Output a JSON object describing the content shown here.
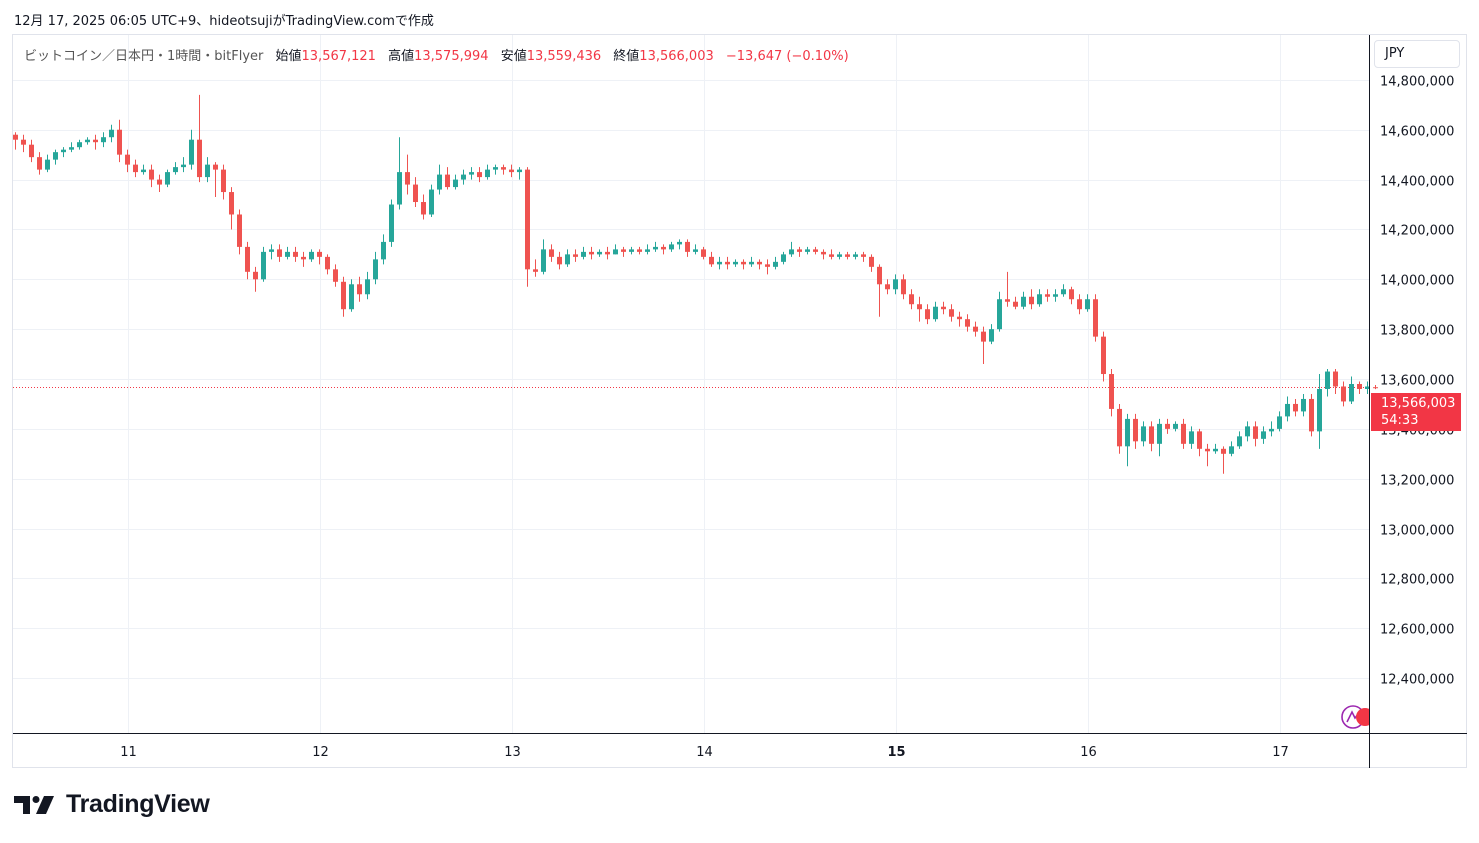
{
  "header": {
    "caption": "12月 17, 2025 06:05 UTC+9、hideotsujiがTradingView.comで作成"
  },
  "legend": {
    "symbol": "ビットコイン／日本円・1時間・bitFlyer",
    "open_label": "始値",
    "open": "13,567,121",
    "high_label": "高値",
    "high": "13,575,994",
    "low_label": "安値",
    "low": "13,559,436",
    "close_label": "終値",
    "close": "13,566,003",
    "change": "−13,647 (−0.10%)"
  },
  "currency": "JPY",
  "last_price": {
    "price": "13,566,003",
    "countdown": "54:33",
    "value": 13566003
  },
  "brand": {
    "name": "TradingView"
  },
  "colors": {
    "up": "#26a69a",
    "down": "#ef5350",
    "grid": "#eef1f6",
    "last_line": "#f23645"
  },
  "chart_data": {
    "type": "candlestick",
    "y_tick_labels": [
      "12,400,000",
      "12,600,000",
      "12,800,000",
      "13,000,000",
      "13,200,000",
      "13,400,000",
      "13,600,000",
      "13,800,000",
      "14,000,000",
      "14,200,000",
      "14,400,000",
      "14,600,000",
      "14,800,000"
    ],
    "y_ticks": [
      12400000,
      12600000,
      12800000,
      13000000,
      13200000,
      13400000,
      13600000,
      13800000,
      14000000,
      14200000,
      14400000,
      14600000,
      14800000
    ],
    "ylim": [
      12180000,
      14980000
    ],
    "x_tick_labels": [
      "11",
      "12",
      "13",
      "14",
      "15",
      "16",
      "17"
    ],
    "x_tick_bold": [
      false,
      false,
      false,
      false,
      true,
      false,
      false
    ],
    "x_tick_candle_index": [
      14,
      38,
      62,
      86,
      110,
      134,
      158
    ],
    "candles": [
      [
        14580000,
        14560000,
        14590000,
        14520000
      ],
      [
        14560000,
        14540000,
        14580000,
        14510000
      ],
      [
        14540000,
        14490000,
        14560000,
        14470000
      ],
      [
        14490000,
        14440000,
        14510000,
        14420000
      ],
      [
        14440000,
        14480000,
        14500000,
        14430000
      ],
      [
        14480000,
        14510000,
        14520000,
        14460000
      ],
      [
        14510000,
        14520000,
        14530000,
        14490000
      ],
      [
        14520000,
        14530000,
        14550000,
        14510000
      ],
      [
        14530000,
        14550000,
        14560000,
        14520000
      ],
      [
        14550000,
        14560000,
        14570000,
        14540000
      ],
      [
        14560000,
        14550000,
        14580000,
        14520000
      ],
      [
        14550000,
        14570000,
        14590000,
        14530000
      ],
      [
        14570000,
        14600000,
        14620000,
        14550000
      ],
      [
        14600000,
        14500000,
        14640000,
        14470000
      ],
      [
        14500000,
        14460000,
        14520000,
        14430000
      ],
      [
        14460000,
        14430000,
        14480000,
        14410000
      ],
      [
        14430000,
        14440000,
        14460000,
        14420000
      ],
      [
        14440000,
        14400000,
        14460000,
        14370000
      ],
      [
        14400000,
        14380000,
        14420000,
        14350000
      ],
      [
        14380000,
        14430000,
        14440000,
        14370000
      ],
      [
        14430000,
        14450000,
        14470000,
        14420000
      ],
      [
        14450000,
        14460000,
        14490000,
        14430000
      ],
      [
        14460000,
        14560000,
        14600000,
        14440000
      ],
      [
        14560000,
        14410000,
        14740000,
        14390000
      ],
      [
        14410000,
        14460000,
        14490000,
        14390000
      ],
      [
        14460000,
        14440000,
        14470000,
        14330000
      ],
      [
        14440000,
        14350000,
        14460000,
        14320000
      ],
      [
        14350000,
        14260000,
        14370000,
        14200000
      ],
      [
        14260000,
        14130000,
        14280000,
        14100000
      ],
      [
        14130000,
        14030000,
        14150000,
        14000000
      ],
      [
        14030000,
        14000000,
        14050000,
        13950000
      ],
      [
        14000000,
        14110000,
        14130000,
        13990000
      ],
      [
        14110000,
        14120000,
        14140000,
        14080000
      ],
      [
        14120000,
        14090000,
        14140000,
        14070000
      ],
      [
        14090000,
        14110000,
        14130000,
        14080000
      ],
      [
        14110000,
        14090000,
        14130000,
        14070000
      ],
      [
        14090000,
        14080000,
        14110000,
        14050000
      ],
      [
        14080000,
        14110000,
        14120000,
        14070000
      ],
      [
        14110000,
        14090000,
        14120000,
        14060000
      ],
      [
        14090000,
        14040000,
        14100000,
        14020000
      ],
      [
        14040000,
        13990000,
        14060000,
        13970000
      ],
      [
        13990000,
        13880000,
        14010000,
        13850000
      ],
      [
        13880000,
        13980000,
        14000000,
        13870000
      ],
      [
        13980000,
        13940000,
        14010000,
        13910000
      ],
      [
        13940000,
        14000000,
        14030000,
        13920000
      ],
      [
        14000000,
        14080000,
        14110000,
        13980000
      ],
      [
        14080000,
        14150000,
        14180000,
        14060000
      ],
      [
        14150000,
        14300000,
        14320000,
        14130000
      ],
      [
        14300000,
        14430000,
        14570000,
        14280000
      ],
      [
        14430000,
        14380000,
        14500000,
        14340000
      ],
      [
        14380000,
        14310000,
        14410000,
        14290000
      ],
      [
        14310000,
        14260000,
        14340000,
        14240000
      ],
      [
        14260000,
        14360000,
        14380000,
        14250000
      ],
      [
        14360000,
        14420000,
        14460000,
        14340000
      ],
      [
        14420000,
        14370000,
        14450000,
        14360000
      ],
      [
        14370000,
        14400000,
        14420000,
        14360000
      ],
      [
        14400000,
        14420000,
        14440000,
        14380000
      ],
      [
        14420000,
        14430000,
        14450000,
        14400000
      ],
      [
        14430000,
        14410000,
        14450000,
        14390000
      ],
      [
        14410000,
        14440000,
        14460000,
        14400000
      ],
      [
        14440000,
        14450000,
        14460000,
        14420000
      ],
      [
        14450000,
        14440000,
        14460000,
        14420000
      ],
      [
        14440000,
        14430000,
        14460000,
        14410000
      ],
      [
        14430000,
        14440000,
        14450000,
        14400000
      ],
      [
        14440000,
        14040000,
        14450000,
        13970000
      ],
      [
        14040000,
        14030000,
        14080000,
        14010000
      ],
      [
        14030000,
        14120000,
        14160000,
        14020000
      ],
      [
        14120000,
        14090000,
        14140000,
        14070000
      ],
      [
        14090000,
        14060000,
        14110000,
        14040000
      ],
      [
        14060000,
        14100000,
        14120000,
        14050000
      ],
      [
        14100000,
        14090000,
        14120000,
        14070000
      ],
      [
        14090000,
        14110000,
        14130000,
        14080000
      ],
      [
        14110000,
        14100000,
        14130000,
        14080000
      ],
      [
        14100000,
        14110000,
        14120000,
        14090000
      ],
      [
        14110000,
        14100000,
        14130000,
        14080000
      ],
      [
        14100000,
        14120000,
        14140000,
        14100000
      ],
      [
        14120000,
        14110000,
        14130000,
        14090000
      ],
      [
        14110000,
        14120000,
        14130000,
        14100000
      ],
      [
        14120000,
        14110000,
        14130000,
        14100000
      ],
      [
        14110000,
        14120000,
        14140000,
        14100000
      ],
      [
        14120000,
        14130000,
        14150000,
        14110000
      ],
      [
        14130000,
        14120000,
        14140000,
        14100000
      ],
      [
        14120000,
        14140000,
        14150000,
        14110000
      ],
      [
        14140000,
        14150000,
        14160000,
        14120000
      ],
      [
        14150000,
        14110000,
        14160000,
        14090000
      ],
      [
        14110000,
        14120000,
        14140000,
        14100000
      ],
      [
        14120000,
        14090000,
        14130000,
        14080000
      ],
      [
        14090000,
        14060000,
        14110000,
        14050000
      ],
      [
        14060000,
        14070000,
        14090000,
        14040000
      ],
      [
        14070000,
        14060000,
        14090000,
        14040000
      ],
      [
        14060000,
        14070000,
        14080000,
        14050000
      ],
      [
        14070000,
        14060000,
        14080000,
        14040000
      ],
      [
        14060000,
        14070000,
        14090000,
        14050000
      ],
      [
        14070000,
        14060000,
        14080000,
        14040000
      ],
      [
        14060000,
        14050000,
        14080000,
        14020000
      ],
      [
        14050000,
        14070000,
        14090000,
        14040000
      ],
      [
        14070000,
        14100000,
        14110000,
        14060000
      ],
      [
        14100000,
        14120000,
        14150000,
        14090000
      ],
      [
        14120000,
        14110000,
        14130000,
        14090000
      ],
      [
        14110000,
        14120000,
        14130000,
        14100000
      ],
      [
        14120000,
        14110000,
        14130000,
        14100000
      ],
      [
        14110000,
        14100000,
        14120000,
        14080000
      ],
      [
        14100000,
        14090000,
        14120000,
        14080000
      ],
      [
        14090000,
        14100000,
        14110000,
        14080000
      ],
      [
        14100000,
        14090000,
        14110000,
        14080000
      ],
      [
        14090000,
        14100000,
        14110000,
        14080000
      ],
      [
        14100000,
        14090000,
        14110000,
        14070000
      ],
      [
        14090000,
        14050000,
        14100000,
        14030000
      ],
      [
        14050000,
        13980000,
        14060000,
        13850000
      ],
      [
        13980000,
        13960000,
        14000000,
        13940000
      ],
      [
        13960000,
        14000000,
        14020000,
        13940000
      ],
      [
        14000000,
        13940000,
        14020000,
        13920000
      ],
      [
        13940000,
        13900000,
        13960000,
        13880000
      ],
      [
        13900000,
        13880000,
        13930000,
        13830000
      ],
      [
        13880000,
        13840000,
        13900000,
        13820000
      ],
      [
        13840000,
        13890000,
        13910000,
        13830000
      ],
      [
        13890000,
        13880000,
        13910000,
        13860000
      ],
      [
        13880000,
        13850000,
        13900000,
        13830000
      ],
      [
        13850000,
        13840000,
        13870000,
        13810000
      ],
      [
        13840000,
        13810000,
        13860000,
        13790000
      ],
      [
        13810000,
        13790000,
        13830000,
        13770000
      ],
      [
        13790000,
        13750000,
        13810000,
        13660000
      ],
      [
        13750000,
        13800000,
        13820000,
        13740000
      ],
      [
        13800000,
        13920000,
        13950000,
        13790000
      ],
      [
        13920000,
        13910000,
        14030000,
        13890000
      ],
      [
        13910000,
        13890000,
        13930000,
        13880000
      ],
      [
        13890000,
        13930000,
        13950000,
        13880000
      ],
      [
        13930000,
        13900000,
        13960000,
        13880000
      ],
      [
        13900000,
        13940000,
        13960000,
        13890000
      ],
      [
        13940000,
        13930000,
        13960000,
        13910000
      ],
      [
        13930000,
        13940000,
        13960000,
        13910000
      ],
      [
        13940000,
        13960000,
        13980000,
        13930000
      ],
      [
        13960000,
        13920000,
        13970000,
        13900000
      ],
      [
        13920000,
        13880000,
        13940000,
        13860000
      ],
      [
        13880000,
        13920000,
        13940000,
        13870000
      ],
      [
        13920000,
        13770000,
        13940000,
        13750000
      ],
      [
        13770000,
        13620000,
        13790000,
        13590000
      ],
      [
        13620000,
        13480000,
        13640000,
        13450000
      ],
      [
        13480000,
        13330000,
        13500000,
        13300000
      ],
      [
        13330000,
        13440000,
        13460000,
        13250000
      ],
      [
        13440000,
        13350000,
        13460000,
        13320000
      ],
      [
        13350000,
        13410000,
        13430000,
        13330000
      ],
      [
        13410000,
        13340000,
        13430000,
        13310000
      ],
      [
        13340000,
        13420000,
        13440000,
        13290000
      ],
      [
        13420000,
        13400000,
        13440000,
        13380000
      ],
      [
        13400000,
        13420000,
        13430000,
        13390000
      ],
      [
        13420000,
        13340000,
        13440000,
        13320000
      ],
      [
        13340000,
        13390000,
        13410000,
        13320000
      ],
      [
        13390000,
        13320000,
        13400000,
        13290000
      ],
      [
        13320000,
        13310000,
        13340000,
        13250000
      ],
      [
        13310000,
        13320000,
        13340000,
        13300000
      ],
      [
        13320000,
        13300000,
        13330000,
        13220000
      ],
      [
        13300000,
        13330000,
        13350000,
        13290000
      ],
      [
        13330000,
        13370000,
        13390000,
        13320000
      ],
      [
        13370000,
        13410000,
        13430000,
        13350000
      ],
      [
        13410000,
        13360000,
        13430000,
        13330000
      ],
      [
        13360000,
        13390000,
        13410000,
        13340000
      ],
      [
        13390000,
        13400000,
        13430000,
        13370000
      ],
      [
        13400000,
        13450000,
        13470000,
        13390000
      ],
      [
        13450000,
        13500000,
        13530000,
        13430000
      ],
      [
        13500000,
        13470000,
        13520000,
        13450000
      ],
      [
        13470000,
        13520000,
        13540000,
        13450000
      ],
      [
        13520000,
        13390000,
        13540000,
        13370000
      ],
      [
        13390000,
        13560000,
        13620000,
        13320000
      ],
      [
        13560000,
        13630000,
        13640000,
        13530000
      ],
      [
        13630000,
        13570000,
        13640000,
        13540000
      ],
      [
        13570000,
        13510000,
        13590000,
        13490000
      ],
      [
        13510000,
        13580000,
        13610000,
        13500000
      ],
      [
        13580000,
        13560000,
        13590000,
        13540000
      ],
      [
        13560000,
        13570000,
        13590000,
        13540000
      ],
      [
        13567121,
        13566003,
        13575994,
        13559436
      ]
    ]
  }
}
